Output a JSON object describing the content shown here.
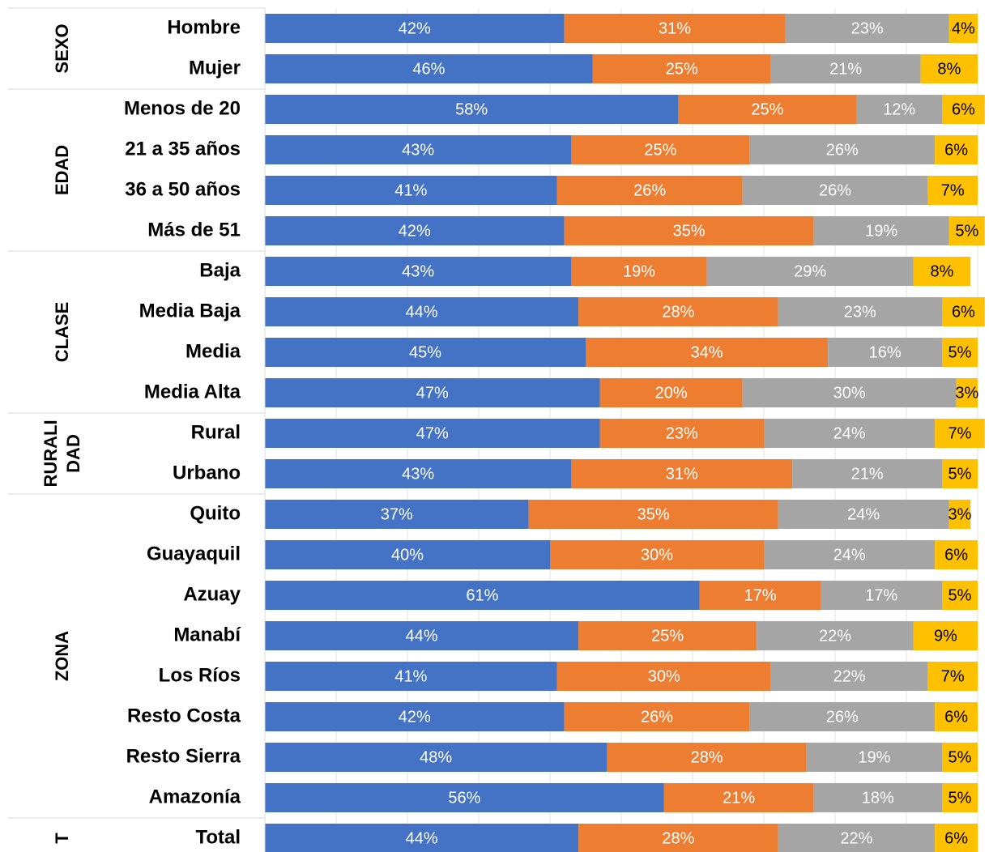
{
  "chart_data": {
    "type": "stacked_barh",
    "groups": [
      {
        "label": "SEXO",
        "categories": [
          "Hombre",
          "Mujer"
        ]
      },
      {
        "label": "EDAD",
        "categories": [
          "Menos de 20",
          "21 a 35 años",
          "36 a 50 años",
          "Más de 51"
        ]
      },
      {
        "label": "CLASE",
        "categories": [
          "Baja",
          "Media Baja",
          "Media",
          "Media Alta"
        ]
      },
      {
        "label": [
          "RURALI",
          "DAD"
        ],
        "categories": [
          "Rural",
          "Urbano"
        ]
      },
      {
        "label": "ZONA",
        "categories": [
          "Quito",
          "Guayaquil",
          "Azuay",
          "Manabí",
          "Los Ríos",
          "Resto Costa",
          "Resto Sierra",
          "Amazonía"
        ]
      },
      {
        "label": "T",
        "categories": [
          "Total"
        ]
      }
    ],
    "series": [
      {
        "color": "#4472c4",
        "label_color": "#ffffff",
        "values": [
          42,
          46,
          58,
          43,
          41,
          42,
          43,
          44,
          45,
          47,
          47,
          43,
          37,
          40,
          61,
          44,
          41,
          42,
          48,
          56,
          44
        ],
        "value_labels": [
          "42%",
          "46%",
          "58%",
          "43%",
          "41%",
          "42%",
          "43%",
          "44%",
          "45%",
          "47%",
          "47%",
          "43%",
          "37%",
          "40%",
          "61%",
          "44%",
          "41%",
          "42%",
          "48%",
          "56%",
          "44%"
        ]
      },
      {
        "color": "#ed7d31",
        "label_color": "#ffffff",
        "values": [
          31,
          25,
          25,
          25,
          26,
          35,
          19,
          28,
          34,
          20,
          23,
          31,
          35,
          30,
          17,
          25,
          30,
          26,
          28,
          21,
          28
        ],
        "value_labels": [
          "31%",
          "25%",
          "25%",
          "25%",
          "26%",
          "35%",
          "19%",
          "28%",
          "34%",
          "20%",
          "23%",
          "31%",
          "35%",
          "30%",
          "17%",
          "25%",
          "30%",
          "26%",
          "28%",
          "21%",
          "28%"
        ]
      },
      {
        "color": "#a5a5a5",
        "label_color": "#ffffff",
        "values": [
          23,
          21,
          12,
          26,
          26,
          19,
          29,
          23,
          16,
          30,
          24,
          21,
          24,
          24,
          17,
          22,
          22,
          26,
          19,
          18,
          22
        ],
        "value_labels": [
          "23%",
          "21%",
          "12%",
          "26%",
          "26%",
          "19%",
          "29%",
          "23%",
          "16%",
          "30%",
          "24%",
          "21%",
          "24%",
          "24%",
          "17%",
          "22%",
          "22%",
          "26%",
          "19%",
          "18%",
          "22%"
        ]
      },
      {
        "color": "#ffc000",
        "label_color": "#000000",
        "values": [
          4,
          8,
          6,
          6,
          7,
          5,
          8,
          6,
          5,
          3,
          7,
          5,
          3,
          6,
          5,
          9,
          7,
          6,
          5,
          5,
          6
        ],
        "value_labels": [
          "4%",
          "8%",
          "6%",
          "6%",
          "7%",
          "5%",
          "8%",
          "6%",
          "5%",
          "3%",
          "7%",
          "5%",
          "3%",
          "6%",
          "5%",
          "9%",
          "7%",
          "6%",
          "5%",
          "5%",
          "6%"
        ]
      }
    ],
    "xlim": [
      0,
      100
    ],
    "xticks": [
      0,
      10,
      20,
      30,
      40,
      50,
      60,
      70,
      80,
      90,
      100
    ],
    "grid": true
  }
}
